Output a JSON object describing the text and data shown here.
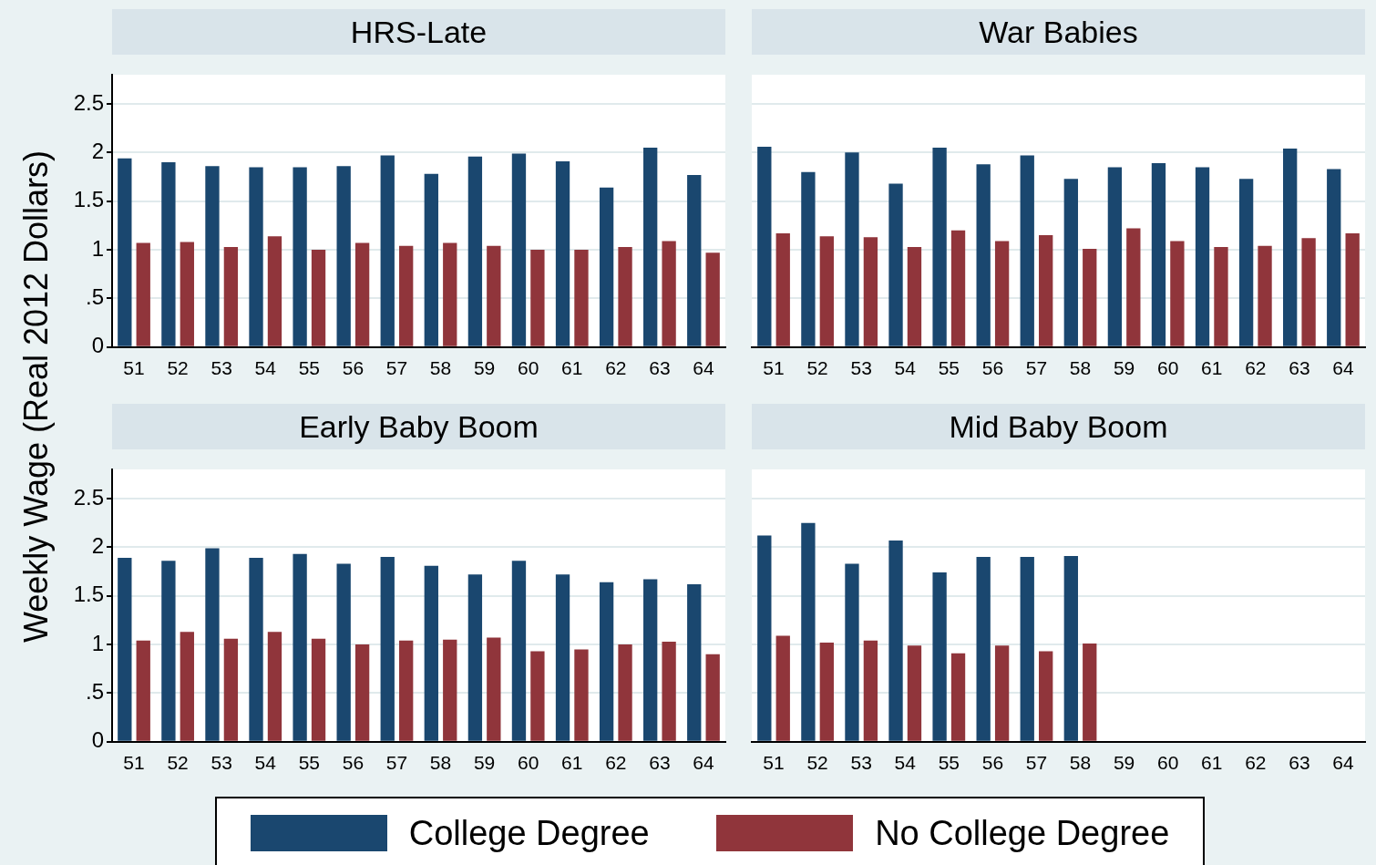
{
  "chart_data": [
    {
      "type": "bar",
      "title": "HRS-Late",
      "ylabel": "Weekly Wage (Real 2012 Dollars)",
      "categories": [
        "51",
        "52",
        "53",
        "54",
        "55",
        "56",
        "57",
        "58",
        "59",
        "60",
        "61",
        "62",
        "63",
        "64"
      ],
      "series": [
        {
          "name": "College Degree",
          "color": "#1a476f",
          "values": [
            1.94,
            1.9,
            1.86,
            1.85,
            1.85,
            1.86,
            1.97,
            1.78,
            1.96,
            1.99,
            1.91,
            1.64,
            2.05,
            1.77
          ]
        },
        {
          "name": "No College Degree",
          "color": "#90353b",
          "values": [
            1.07,
            1.08,
            1.03,
            1.14,
            1.0,
            1.07,
            1.04,
            1.07,
            1.04,
            1.0,
            1.0,
            1.03,
            1.09,
            0.97
          ]
        }
      ],
      "ylim": [
        0,
        2.8
      ],
      "yticks": [
        0,
        {
          "value": 0.5,
          "label": ".5"
        },
        1,
        1.5,
        2,
        2.5
      ],
      "grid": "y",
      "legend": "bottom"
    },
    {
      "type": "bar",
      "title": "War Babies",
      "categories": [
        "51",
        "52",
        "53",
        "54",
        "55",
        "56",
        "57",
        "58",
        "59",
        "60",
        "61",
        "62",
        "63",
        "64"
      ],
      "series": [
        {
          "color": "#1a476f",
          "values": [
            2.06,
            1.8,
            2.0,
            1.68,
            2.05,
            1.88,
            1.97,
            1.73,
            1.85,
            1.89,
            1.85,
            1.73,
            2.04,
            1.83
          ]
        },
        {
          "color": "#90353b",
          "values": [
            1.17,
            1.14,
            1.13,
            1.03,
            1.2,
            1.09,
            1.15,
            1.01,
            1.22,
            1.09,
            1.03,
            1.04,
            1.12,
            1.17
          ]
        }
      ],
      "ylim": [
        0,
        2.8
      ],
      "yticks": [
        0,
        0.5,
        1,
        1.5,
        2,
        2.5
      ],
      "grid": "y",
      "tick_labels": "x"
    },
    {
      "type": "bar",
      "title": "Early Baby Boom",
      "categories": [
        "51",
        "52",
        "53",
        "54",
        "55",
        "56",
        "57",
        "58",
        "59",
        "60",
        "61",
        "62",
        "63",
        "64"
      ],
      "series": [
        {
          "color": "#1a476f",
          "values": [
            1.89,
            1.86,
            1.99,
            1.89,
            1.93,
            1.83,
            1.9,
            1.81,
            1.72,
            1.86,
            1.72,
            1.64,
            1.67,
            1.62
          ]
        },
        {
          "color": "#90353b",
          "values": [
            1.04,
            1.13,
            1.06,
            1.13,
            1.06,
            1.0,
            1.04,
            1.05,
            1.07,
            0.93,
            0.95,
            1.0,
            1.03,
            0.9
          ]
        }
      ],
      "ylim": [
        0,
        2.8
      ],
      "yticks": [
        0,
        {
          "value": 0.5,
          "label": ".5"
        },
        1,
        1.5,
        2,
        2.5
      ],
      "grid": "y"
    },
    {
      "type": "bar",
      "title": "Mid Baby Boom",
      "categories": [
        "51",
        "52",
        "53",
        "54",
        "55",
        "56",
        "57",
        "58",
        "59",
        "60",
        "61",
        "62",
        "63",
        "64"
      ],
      "series": [
        {
          "color": "#1a476f",
          "values": [
            2.12,
            2.25,
            1.83,
            2.07,
            1.74,
            1.9,
            1.9,
            1.91,
            null,
            null,
            null,
            null,
            null,
            null
          ]
        },
        {
          "color": "#90353b",
          "values": [
            1.09,
            1.02,
            1.04,
            0.99,
            0.91,
            0.99,
            0.93,
            1.01,
            null,
            null,
            null,
            null,
            null,
            null
          ]
        }
      ],
      "ylim": [
        0,
        2.8
      ],
      "yticks": [
        0,
        0.5,
        1,
        1.5,
        2,
        2.5
      ],
      "grid": "y",
      "tick_labels": "x"
    }
  ]
}
